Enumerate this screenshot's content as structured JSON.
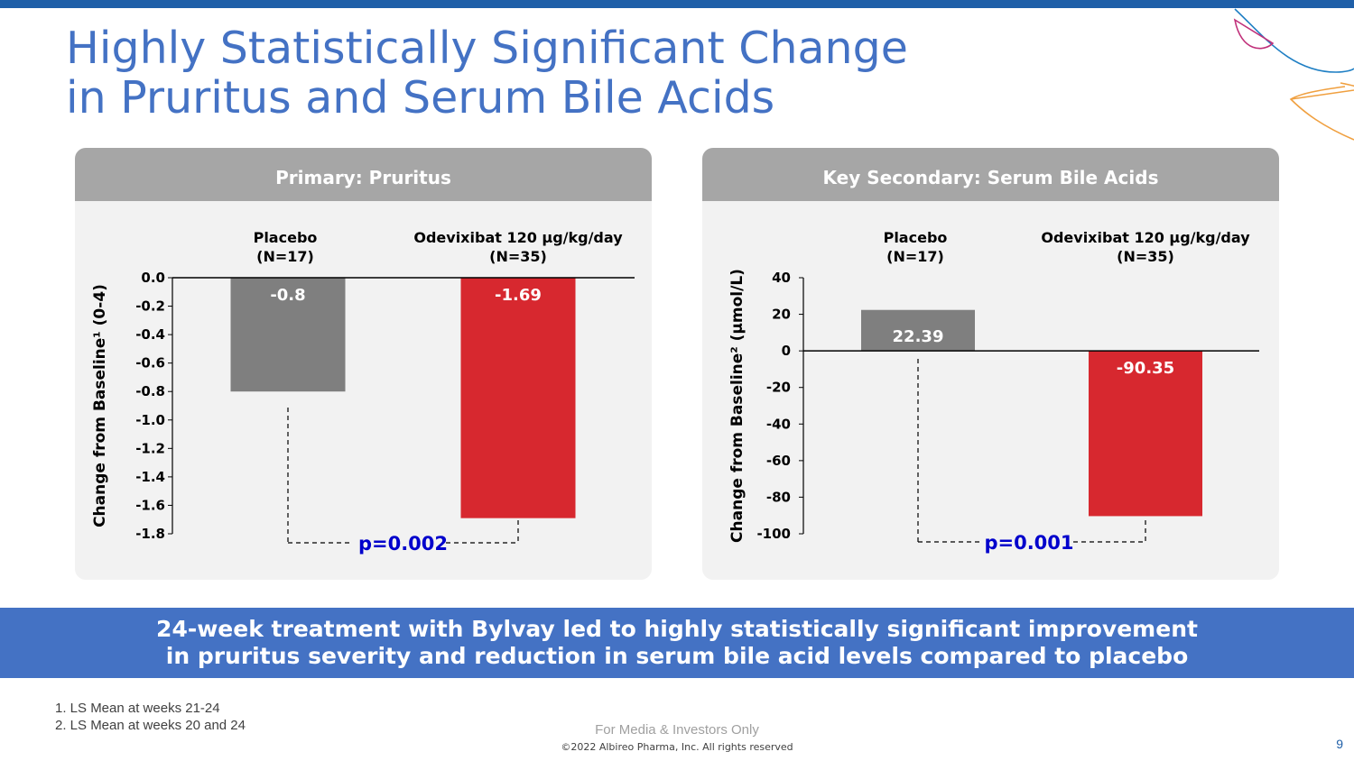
{
  "slide": {
    "title_line1": "Highly Statistically Significant Change",
    "title_line2": "in Pruritus and Serum Bile Acids",
    "banner_line1": "24-week treatment with Bylvay led to highly statistically significant improvement",
    "banner_line2": "in pruritus severity and reduction in serum bile acid levels compared to placebo",
    "footnote1": "1. LS Mean at weeks 21-24",
    "footnote2": "2. LS Mean at weeks 20 and 24",
    "media_note": "For Media & Investors Only",
    "copyright": "©2022 Albireo Pharma, Inc. All rights reserved",
    "page_number": "9"
  },
  "colors": {
    "placebo": "#7f7f7f",
    "treatment": "#d7282f",
    "accent": "#4472c4",
    "pvalue": "#0000cc"
  },
  "chart_data": [
    {
      "type": "bar",
      "title": "Primary: Pruritus",
      "categories": [
        "Placebo",
        "Odevixibat 120 µg/kg/day"
      ],
      "category_n": [
        "(N=17)",
        "(N=35)"
      ],
      "values": [
        -0.8,
        -1.69
      ],
      "value_labels": [
        "-0.8",
        "-1.69"
      ],
      "ylabel": "Change from Baseline¹ (0-4)",
      "ylim": [
        -1.8,
        0.0
      ],
      "yticks": [
        0.0,
        -0.2,
        -0.4,
        -0.6,
        -0.8,
        -1.0,
        -1.2,
        -1.4,
        -1.6,
        -1.8
      ],
      "ytick_labels": [
        "0.0",
        "-0.2",
        "-0.4",
        "-0.6",
        "-0.8",
        "-1.0",
        "-1.2",
        "-1.4",
        "-1.6",
        "-1.8"
      ],
      "p_value": "p=0.002"
    },
    {
      "type": "bar",
      "title": "Key Secondary: Serum Bile Acids",
      "categories": [
        "Placebo",
        "Odevixibat 120 µg/kg/day"
      ],
      "category_n": [
        "(N=17)",
        "(N=35)"
      ],
      "values": [
        22.39,
        -90.35
      ],
      "value_labels": [
        "22.39",
        "-90.35"
      ],
      "ylabel": "Change from Baseline² (µmol/L)",
      "ylim": [
        -100,
        40
      ],
      "yticks": [
        40,
        20,
        0,
        -20,
        -40,
        -60,
        -80,
        -100
      ],
      "ytick_labels": [
        "40",
        "20",
        "0",
        "-20",
        "-40",
        "-60",
        "-80",
        "-100"
      ],
      "p_value": "p=0.001"
    }
  ]
}
